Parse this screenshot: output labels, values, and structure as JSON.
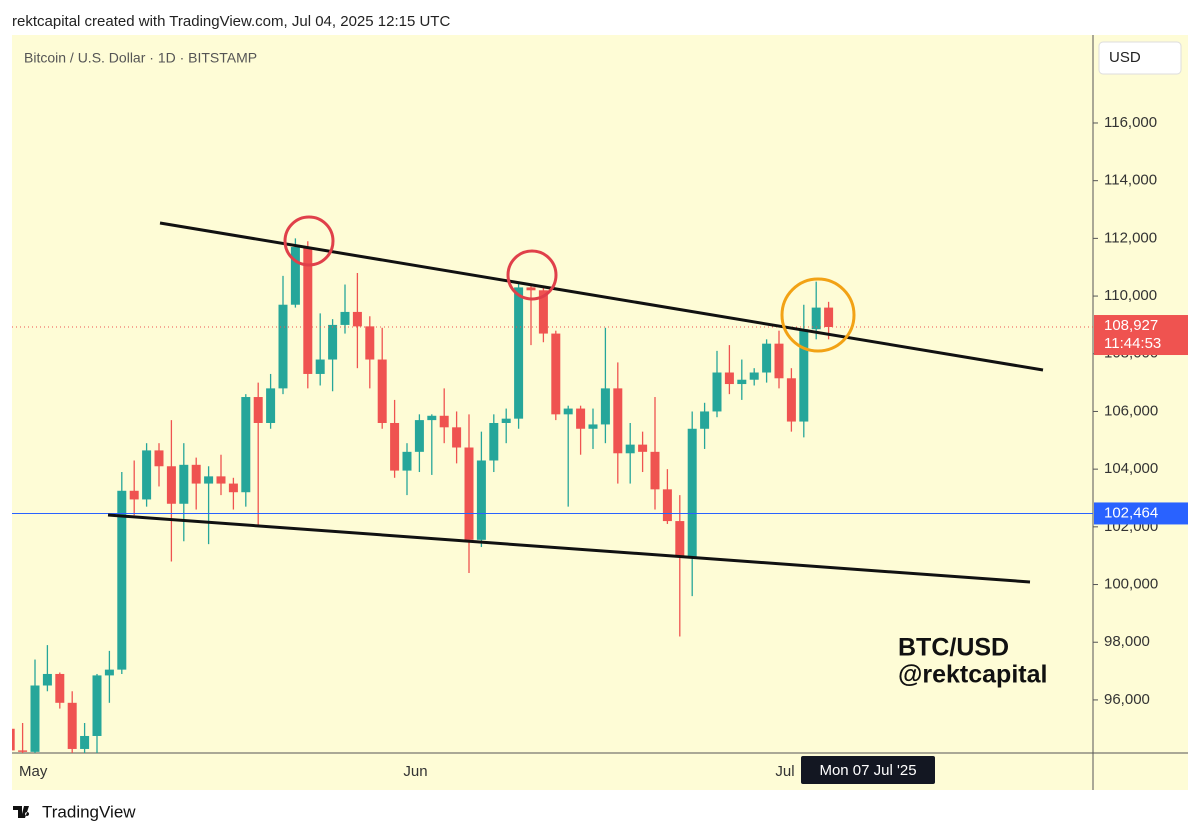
{
  "header": "rektcapital created with TradingView.com, Jul 04, 2025 12:15 UTC",
  "chart_data": {
    "type": "candlestick",
    "title": "Bitcoin / U.S. Dollar · 1D · BITSTAMP",
    "currency": "USD",
    "categories": [
      null,
      null,
      "May",
      null,
      null,
      null,
      null,
      null,
      null,
      null,
      null,
      null,
      null,
      null,
      null,
      null,
      null,
      null,
      null,
      null,
      null,
      null,
      null,
      null,
      null,
      null,
      null,
      null,
      null,
      null,
      null,
      null,
      null,
      "Jun",
      null,
      null,
      null,
      null,
      null,
      null,
      null,
      null,
      null,
      null,
      null,
      null,
      null,
      null,
      null,
      null,
      null,
      null,
      null,
      null,
      null,
      null,
      null,
      null,
      null,
      null,
      null,
      null,
      null,
      "Jul",
      null,
      null,
      null
    ],
    "open": [
      95000,
      94250,
      94200,
      96500,
      96900,
      95900,
      94300,
      94750,
      96850,
      97050,
      103250,
      102950,
      104650,
      104100,
      102800,
      104150,
      103500,
      103750,
      103500,
      103200,
      106500,
      105600,
      106800,
      109700,
      111700,
      107300,
      107800,
      109000,
      109450,
      108950,
      107800,
      105600,
      103950,
      104600,
      105700,
      105850,
      105450,
      104750,
      101550,
      104300,
      105600,
      105750,
      110300,
      110200,
      108700,
      105900,
      106100,
      105400,
      105550,
      106800,
      104550,
      104850,
      104600,
      103300,
      102200,
      100950,
      105400,
      106000,
      107350,
      106950,
      107100,
      107350,
      108350,
      107150,
      105650,
      108850,
      109600
    ],
    "high": [
      95500,
      95200,
      97400,
      97900,
      96950,
      96300,
      95200,
      96900,
      97700,
      103900,
      104300,
      104900,
      104900,
      105700,
      104900,
      104400,
      104100,
      104500,
      103700,
      106600,
      107000,
      107300,
      110700,
      112000,
      111900,
      109400,
      109200,
      110400,
      110800,
      109300,
      108900,
      106400,
      104900,
      105900,
      105900,
      106800,
      106000,
      105900,
      105300,
      105900,
      106100,
      110500,
      110400,
      110300,
      108800,
      106200,
      106200,
      106100,
      108900,
      107700,
      105600,
      105300,
      106500,
      104000,
      103100,
      106000,
      106300,
      108100,
      108300,
      107800,
      107500,
      108500,
      108800,
      107500,
      109700,
      110500,
      109800
    ],
    "low": [
      93800,
      92900,
      94100,
      96300,
      95700,
      93900,
      93500,
      93400,
      95900,
      96900,
      102400,
      102700,
      103400,
      100800,
      101500,
      102600,
      101400,
      103100,
      102600,
      102700,
      102000,
      105400,
      106600,
      109600,
      106800,
      106900,
      106700,
      108700,
      107500,
      106800,
      105400,
      103700,
      103100,
      103900,
      103800,
      104900,
      104200,
      100400,
      101300,
      103900,
      104900,
      105400,
      108300,
      108400,
      105700,
      102700,
      104500,
      104700,
      104900,
      103500,
      103500,
      103900,
      102600,
      102100,
      98200,
      99600,
      104700,
      105800,
      106600,
      106400,
      106900,
      107000,
      106800,
      105300,
      105100,
      108500,
      108500
    ],
    "close": [
      94250,
      94200,
      96500,
      96900,
      95900,
      94300,
      94750,
      96850,
      97050,
      103250,
      102950,
      104650,
      104100,
      102800,
      104150,
      103500,
      103750,
      103500,
      103200,
      106500,
      105600,
      106800,
      109700,
      111700,
      107300,
      107800,
      109000,
      109450,
      108950,
      107800,
      105600,
      103950,
      104600,
      105700,
      105850,
      105450,
      104750,
      101550,
      104300,
      105600,
      105750,
      110300,
      110200,
      108700,
      105900,
      106100,
      105400,
      105550,
      106800,
      104550,
      104850,
      104600,
      103300,
      102200,
      100950,
      105400,
      106000,
      107350,
      106950,
      107100,
      107350,
      108350,
      107150,
      105650,
      108850,
      109600,
      108927
    ],
    "colors": {
      "up": "#26a69a",
      "down": "#ef5350",
      "price_line": "#2962ff"
    },
    "ylim": [
      94160,
      119050
    ],
    "yticks": [
      {
        "value": 96000,
        "label": "96,000"
      },
      {
        "value": 98000,
        "label": "98,000"
      },
      {
        "value": 100000,
        "label": "100,000"
      },
      {
        "value": 102000,
        "label": "102,000"
      },
      {
        "value": 104000,
        "label": "104,000"
      },
      {
        "value": 106000,
        "label": "106,000"
      },
      {
        "value": 108000,
        "label": "108,000"
      },
      {
        "value": 110000,
        "label": "110,000"
      },
      {
        "value": 112000,
        "label": "112,000"
      },
      {
        "value": 114000,
        "label": "114,000"
      },
      {
        "value": 116000,
        "label": "116,000"
      }
    ],
    "last_price": {
      "value": 108927,
      "label": "108,927"
    },
    "countdown": "11:44:53",
    "price_line": {
      "value": 102464,
      "label": "102,464"
    },
    "crosshair_label": "Mon 07 Jul '25",
    "watermark": [
      "BTC/USD",
      "@rektcapital"
    ]
  },
  "footer": "TradingView"
}
